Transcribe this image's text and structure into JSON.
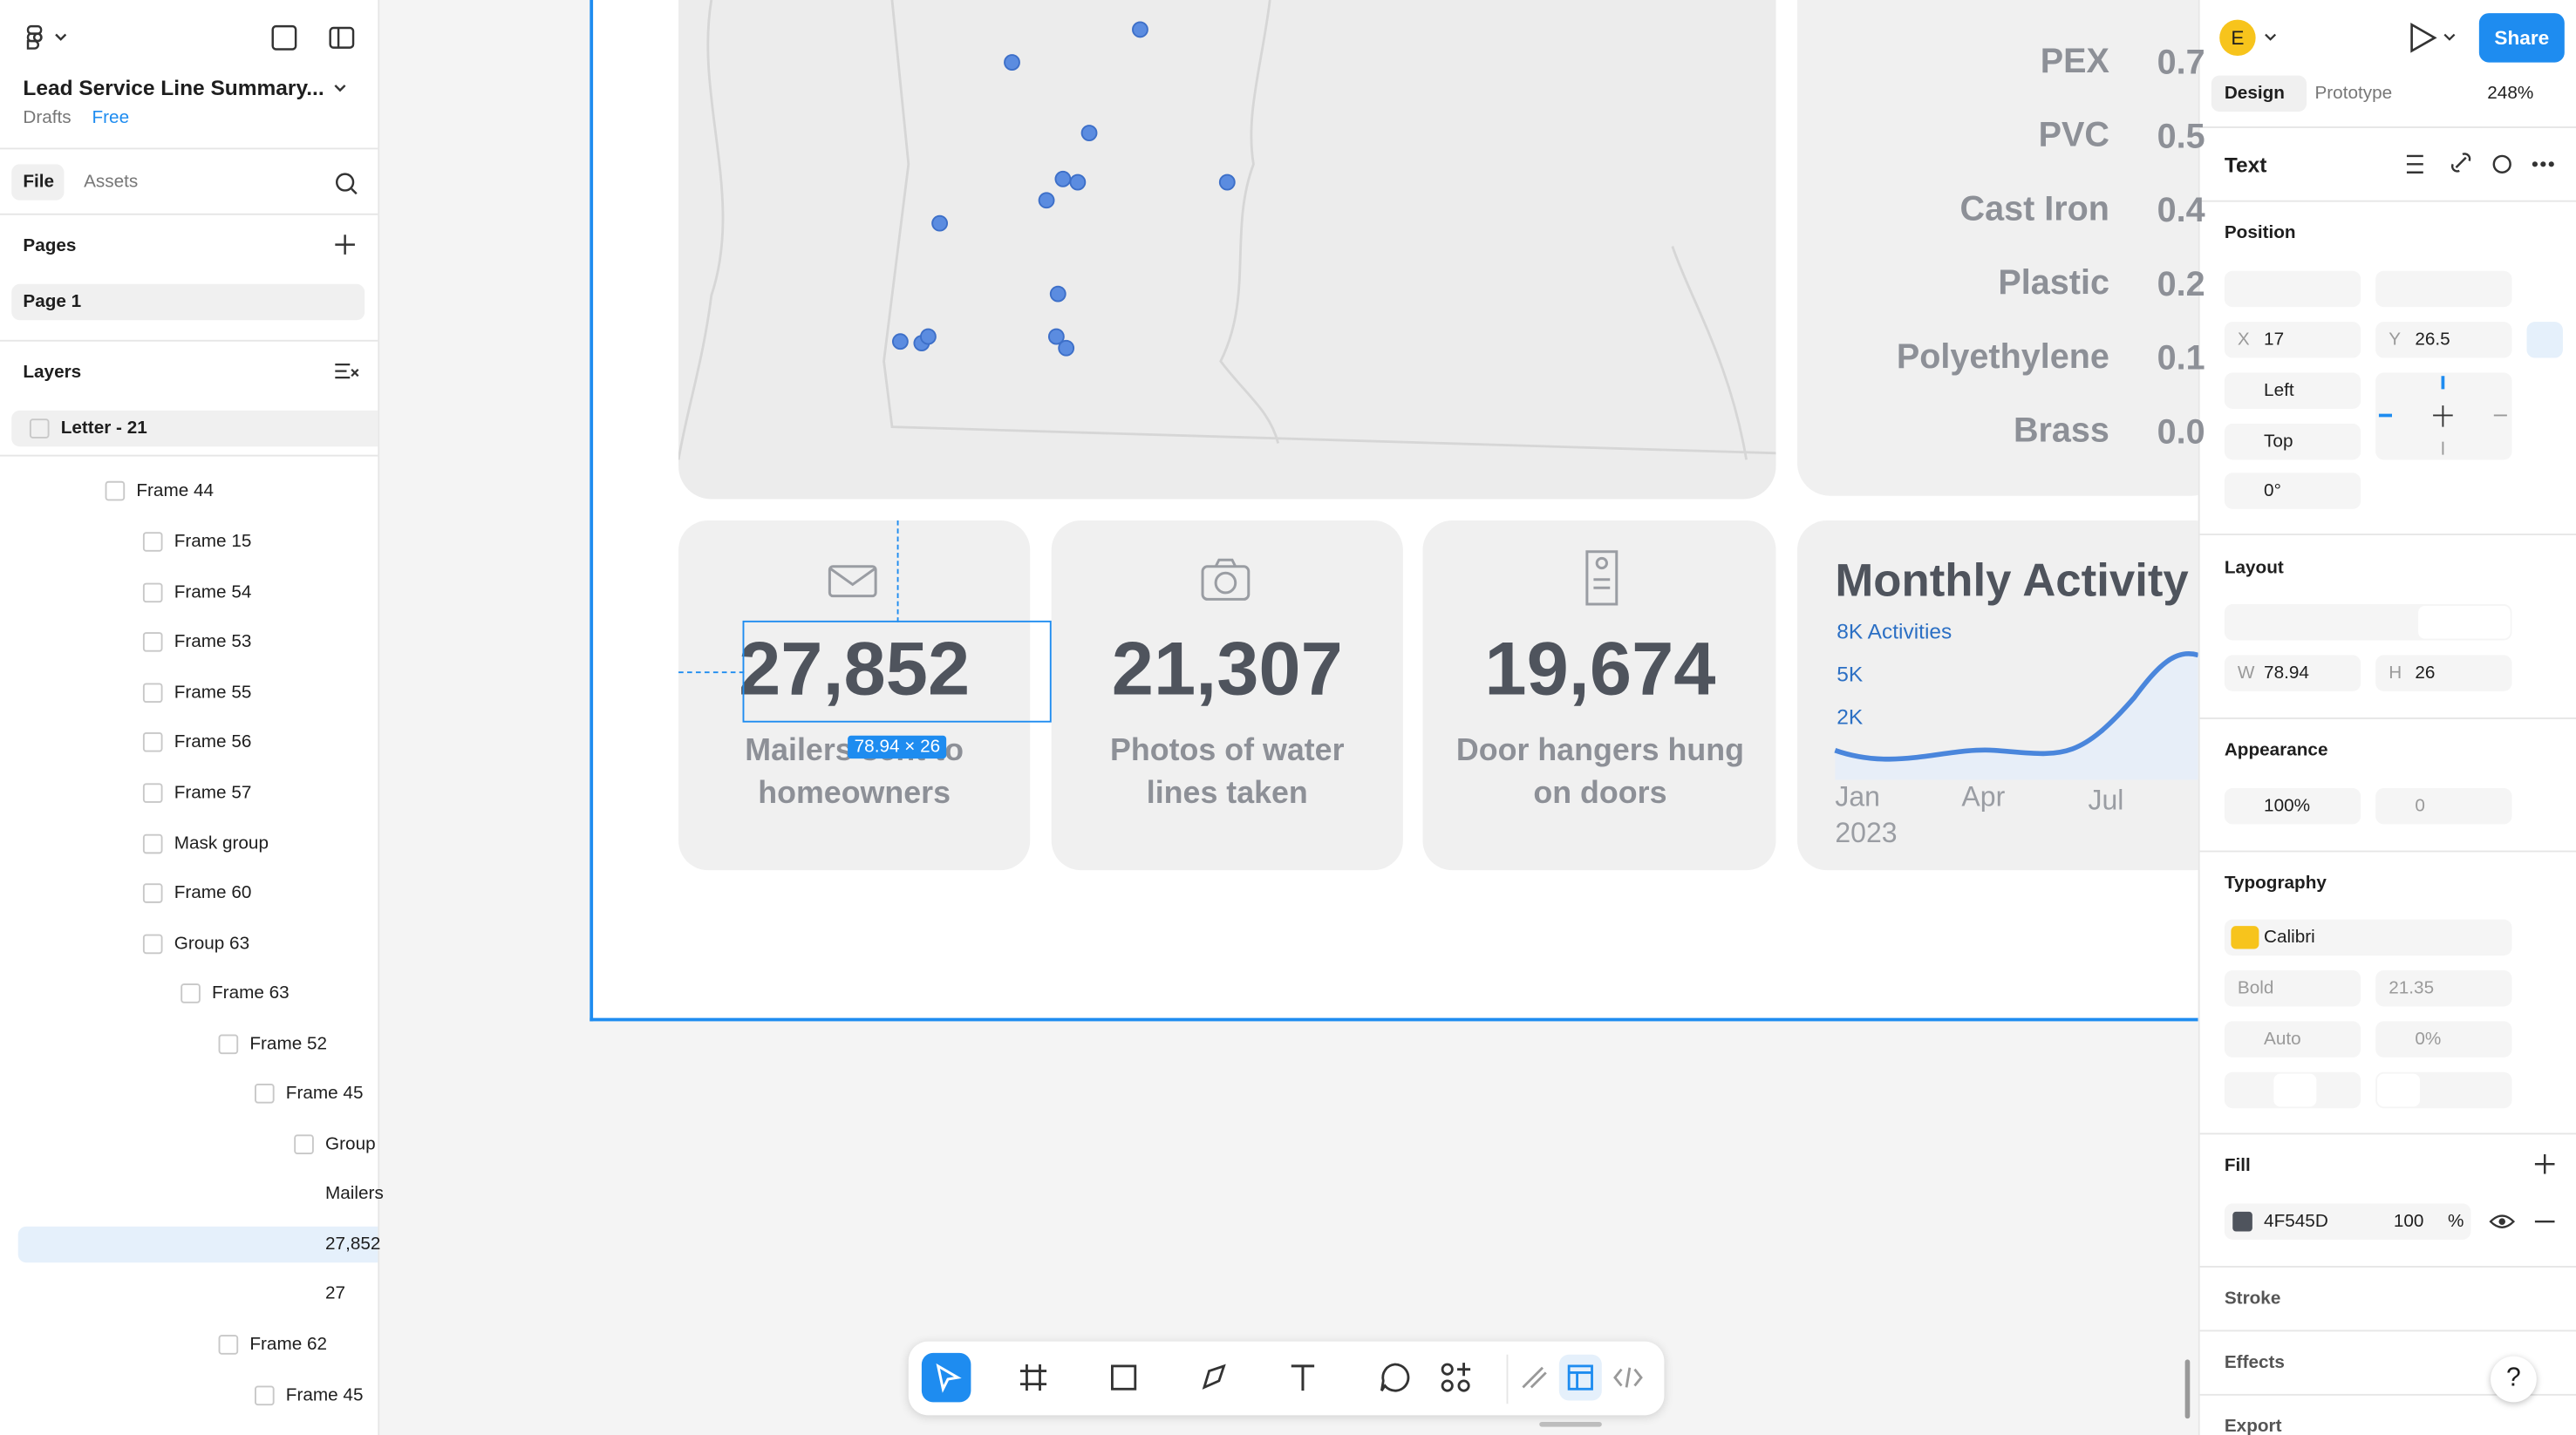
{
  "header": {
    "file_name": "Lead Service Line Summary...",
    "drafts": "Drafts",
    "plan": "Free"
  },
  "left_tabs": [
    "File",
    "Assets"
  ],
  "pages_title": "Pages",
  "pages": [
    "Page 1"
  ],
  "layers_title": "Layers",
  "layers": [
    "Letter - 21",
    "Frame 44",
    "Frame 15",
    "Frame 54",
    "Frame 53",
    "Frame 55",
    "Frame 56",
    "Frame 57",
    "Mask group",
    "Frame 60",
    "Group 63",
    "Frame 63",
    "Frame 52",
    "Frame 45",
    "Group",
    "Mailers",
    "27,852",
    "27",
    "Frame 62",
    "Frame 45"
  ],
  "canvas": {
    "materials": [
      {
        "name": "PEX",
        "value": "0.7"
      },
      {
        "name": "PVC",
        "value": "0.5"
      },
      {
        "name": "Cast Iron",
        "value": "0.4"
      },
      {
        "name": "Plastic",
        "value": "0.2"
      },
      {
        "name": "Polyethylene",
        "value": "0.1"
      },
      {
        "name": "Brass",
        "value": "0.0"
      }
    ],
    "stats": [
      {
        "number": "27,852",
        "caption": [
          "Mailers sent to",
          "homeowners"
        ]
      },
      {
        "number": "21,307",
        "caption": [
          "Photos of water",
          "lines taken"
        ]
      },
      {
        "number": "19,674",
        "caption": [
          "Door hangers hung",
          "on doors"
        ]
      }
    ],
    "selection_size": "78.94 × 26",
    "activity": {
      "title": "Monthly Activity",
      "legend": "8K Activities",
      "y_labels": [
        "5K",
        "2K"
      ],
      "x_labels": [
        "Jan",
        "Apr",
        "Jul"
      ],
      "year": "2023"
    }
  },
  "right_panel": {
    "avatar": "E",
    "share": "Share",
    "tabs": [
      "Design",
      "Prototype"
    ],
    "zoom": "248%",
    "selection_type": "Text",
    "position": {
      "title": "Position",
      "x_label": "X",
      "x": "17",
      "y_label": "Y",
      "y": "26.5",
      "h_constraint": "Left",
      "v_constraint": "Top",
      "rotation": "0°"
    },
    "layout": {
      "title": "Layout",
      "w_label": "W",
      "w": "78.94",
      "h_label": "H",
      "h": "26"
    },
    "appearance": {
      "title": "Appearance",
      "opacity": "100%",
      "radius": "0"
    },
    "typography": {
      "title": "Typography",
      "font": "Calibri",
      "weight": "Bold",
      "size": "21.35",
      "line_height": "Auto",
      "letter_spacing": "0%"
    },
    "fill": {
      "title": "Fill",
      "hex": "4F545D",
      "opacity": "100",
      "unit": "%"
    },
    "stroke": "Stroke",
    "effects": "Effects",
    "export": "Export",
    "help": "?"
  }
}
